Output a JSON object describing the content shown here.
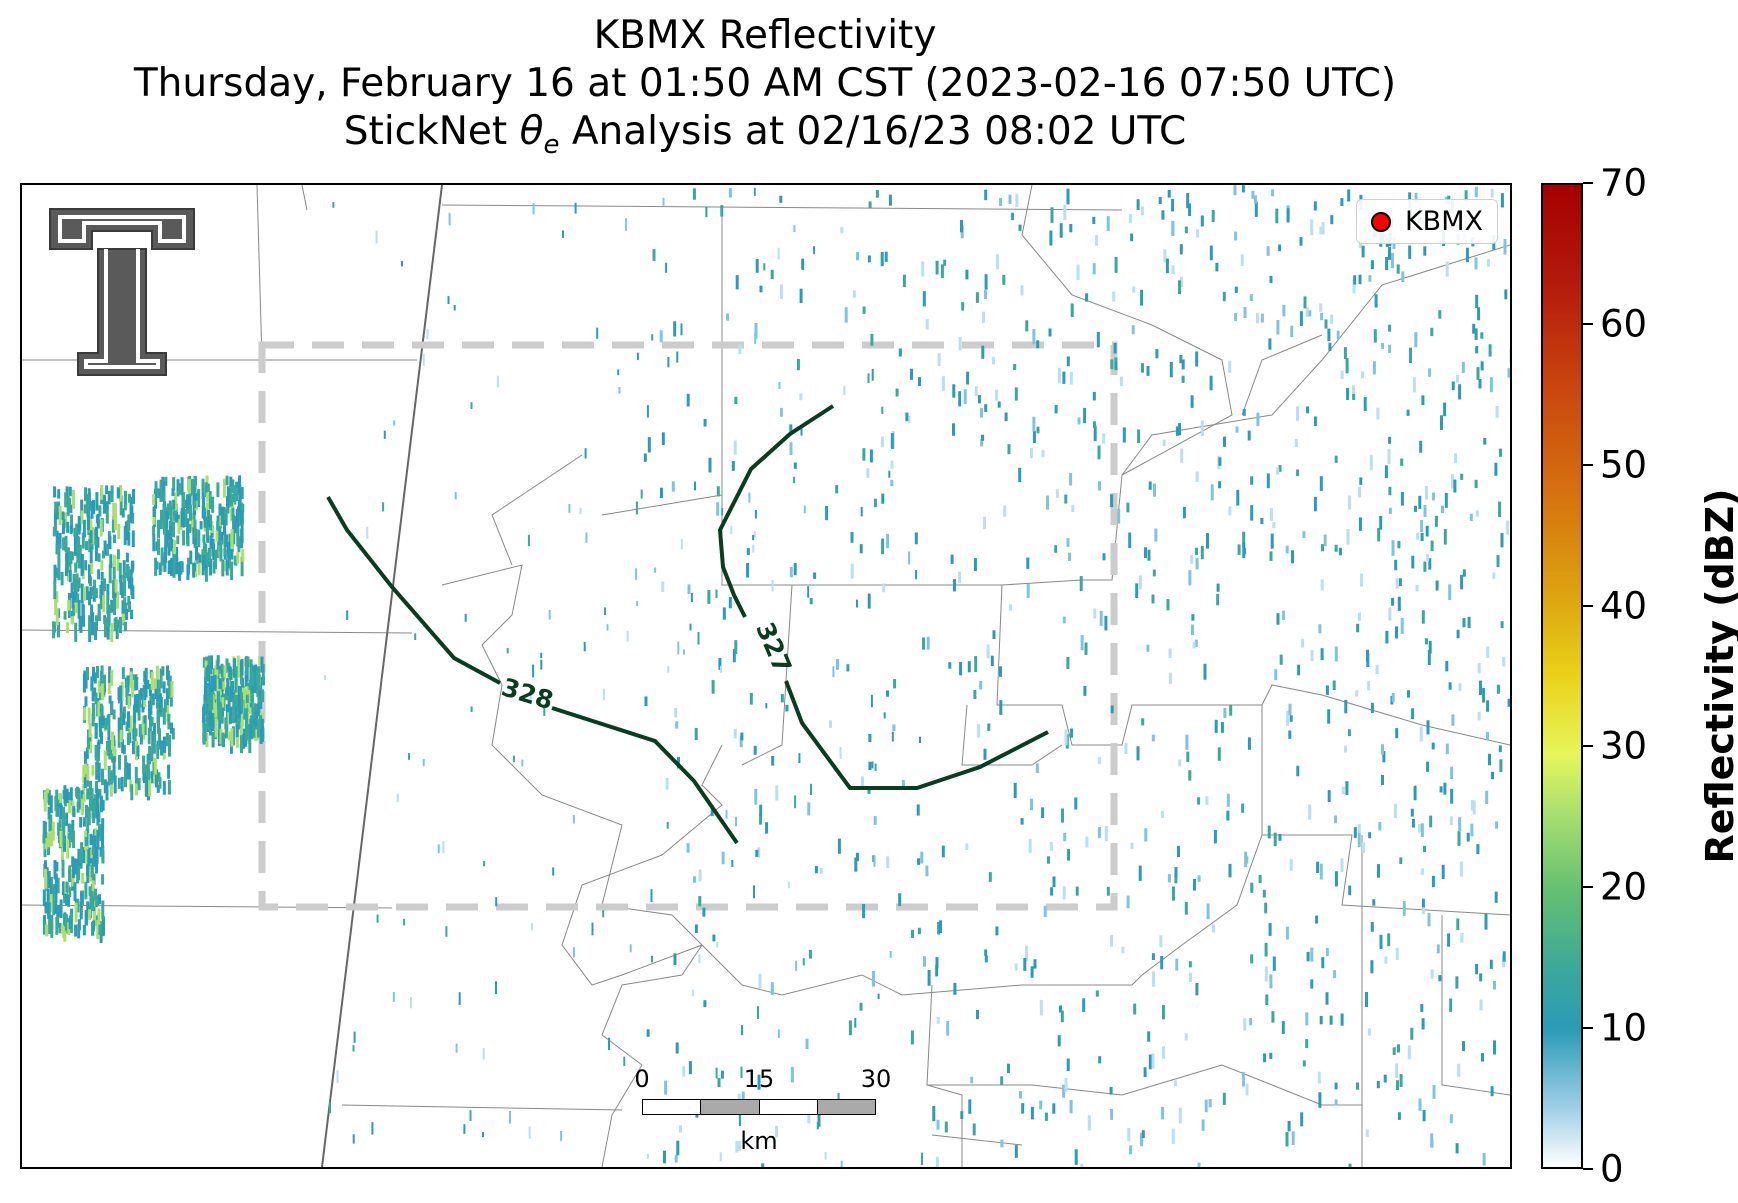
{
  "title": {
    "line1": "KBMX Reflectivity",
    "line2": "Thursday, February 16 at 01:50 AM CST (2023-02-16 07:50 UTC)",
    "line3_prefix": "StickNet ",
    "line3_symbol": "θ",
    "line3_subscript": "e",
    "line3_suffix": " Analysis at 02/16/23 08:02 UTC"
  },
  "legend": {
    "label": "KBMX",
    "marker_color": "#ff0000"
  },
  "contours": [
    {
      "label": "328",
      "color": "#0a3d20"
    },
    {
      "label": "327",
      "color": "#0a3d20"
    }
  ],
  "scalebar": {
    "ticks": [
      "0",
      "15",
      "30"
    ],
    "unit": "km"
  },
  "colorbar": {
    "title": "Reflectivity (dBZ)",
    "ticks": [
      "0",
      "10",
      "20",
      "30",
      "40",
      "50",
      "60",
      "70"
    ],
    "min": 0,
    "max": 70
  },
  "logo": {
    "icon": "texas-tech-double-t-logo"
  },
  "colors": {
    "analysis_box": "#cccccc",
    "county_lines": "#888888",
    "echo_low": "#2b9bb6",
    "echo_mid": "#3aa89a",
    "echo_high": "#a9df6f"
  }
}
